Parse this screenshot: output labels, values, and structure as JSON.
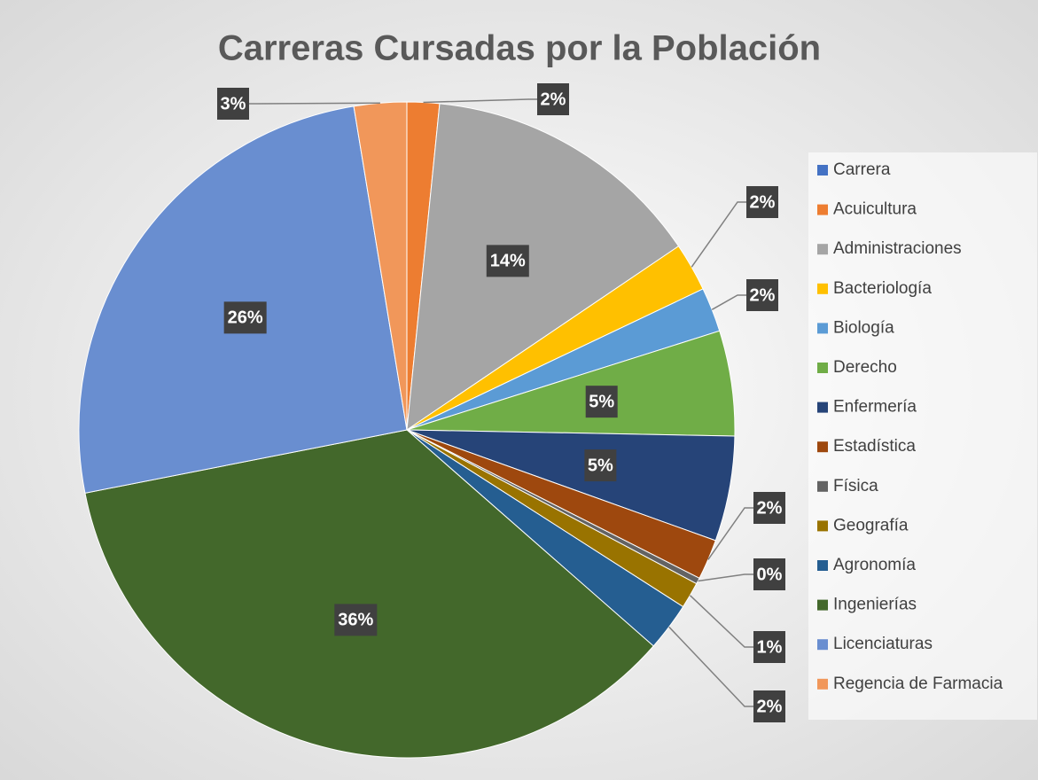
{
  "chart_data": {
    "type": "pie",
    "title": "Carreras Cursadas por la Población",
    "categories": [
      "Carrera",
      "Acuicultura",
      "Administraciones",
      "Bacteriología",
      "Biología",
      "Derecho",
      "Enfermería",
      "Estadística",
      "Física",
      "Geografía",
      "Agronomía",
      "Ingenierías",
      "Licenciaturas",
      "Regencia de Farmacia"
    ],
    "values": [
      null,
      1.6,
      14.0,
      2.4,
      2.2,
      5.2,
      5.2,
      2.0,
      0.3,
      1.3,
      2.4,
      35.6,
      25.6,
      2.6
    ],
    "value_labels": [
      null,
      "2%",
      "14%",
      "2%",
      "2%",
      "5%",
      "5%",
      "2%",
      "0%",
      "1%",
      "2%",
      "36%",
      "26%",
      "3%"
    ],
    "colors": [
      "#4472c4",
      "#ed7d31",
      "#a5a5a5",
      "#ffc000",
      "#5b9bd5",
      "#70ad47",
      "#264478",
      "#9e480e",
      "#636363",
      "#997300",
      "#255e91",
      "#43682b",
      "#698ed0",
      "#f1975a"
    ],
    "legend": "right"
  }
}
